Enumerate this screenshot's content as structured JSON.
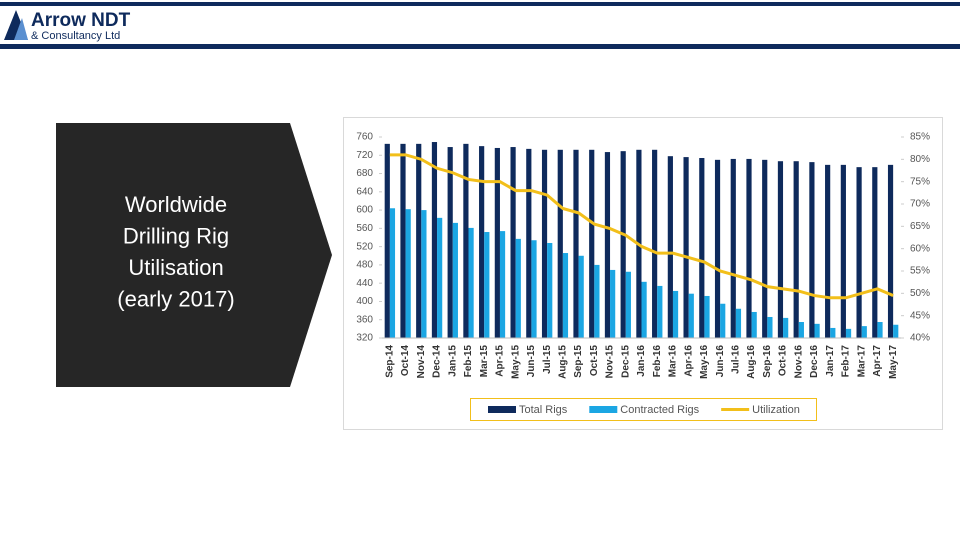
{
  "header": {
    "company": "Arrow NDT",
    "subtitle": "& Consultancy Ltd"
  },
  "panel": {
    "lines": [
      "Worldwide",
      "Drilling Rig",
      "Utilisation",
      "(early 2017)"
    ]
  },
  "chart_data": {
    "type": "bar_line",
    "categories": [
      "Sep-14",
      "Oct-14",
      "Nov-14",
      "Dec-14",
      "Jan-15",
      "Feb-15",
      "Mar-15",
      "Apr-15",
      "May-15",
      "Jun-15",
      "Jul-15",
      "Aug-15",
      "Sep-15",
      "Oct-15",
      "Nov-15",
      "Dec-15",
      "Jan-16",
      "Feb-16",
      "Mar-16",
      "Apr-16",
      "May-16",
      "Jun-16",
      "Jul-16",
      "Aug-16",
      "Sep-16",
      "Oct-16",
      "Nov-16",
      "Dec-16",
      "Jan-17",
      "Feb-17",
      "Mar-17",
      "Apr-17",
      "May-17"
    ],
    "series": [
      {
        "name": "Total Rigs",
        "color": "#0e2a5c",
        "kind": "bar",
        "values": [
          745,
          745,
          745,
          749,
          738,
          745,
          740,
          736,
          738,
          734,
          732,
          732,
          732,
          732,
          727,
          729,
          732,
          732,
          718,
          716,
          714,
          710,
          712,
          712,
          710,
          707,
          707,
          705,
          699,
          699,
          694,
          694,
          699
        ]
      },
      {
        "name": "Contracted Rigs",
        "color": "#1ba6e3",
        "kind": "bar",
        "values": [
          604,
          602,
          600,
          583,
          572,
          561,
          552,
          554,
          537,
          534,
          528,
          506,
          500,
          480,
          469,
          465,
          443,
          434,
          423,
          417,
          412,
          395,
          384,
          377,
          366,
          364,
          355,
          351,
          342,
          340,
          346,
          355,
          349
        ]
      },
      {
        "name": "Utilization",
        "color": "#f2bf1a",
        "kind": "line",
        "axis": "y2",
        "values": [
          81,
          81,
          80,
          78,
          77,
          75.5,
          75,
          75,
          73,
          73,
          72,
          69,
          68,
          65.5,
          64.5,
          63,
          60.5,
          59,
          59,
          58,
          57,
          55,
          54,
          53,
          51.5,
          51,
          50.5,
          49.5,
          49,
          49,
          50,
          51,
          49.5
        ]
      }
    ],
    "ylim": [
      320,
      760
    ],
    "yticks": [
      320,
      360,
      400,
      440,
      480,
      520,
      560,
      600,
      640,
      680,
      720,
      760
    ],
    "y2lim": [
      40,
      85
    ],
    "y2ticks": [
      {
        "value": 40,
        "label": "40%"
      },
      {
        "value": 45,
        "label": "45%"
      },
      {
        "value": 50,
        "label": "50%"
      },
      {
        "value": 55,
        "label": "55%"
      },
      {
        "value": 60,
        "label": "60%"
      },
      {
        "value": 65,
        "label": "65%"
      },
      {
        "value": 70,
        "label": "70%"
      },
      {
        "value": 75,
        "label": "75%"
      },
      {
        "value": 80,
        "label": "80%"
      },
      {
        "value": 85,
        "label": "85%"
      }
    ],
    "legend": "bottom"
  }
}
